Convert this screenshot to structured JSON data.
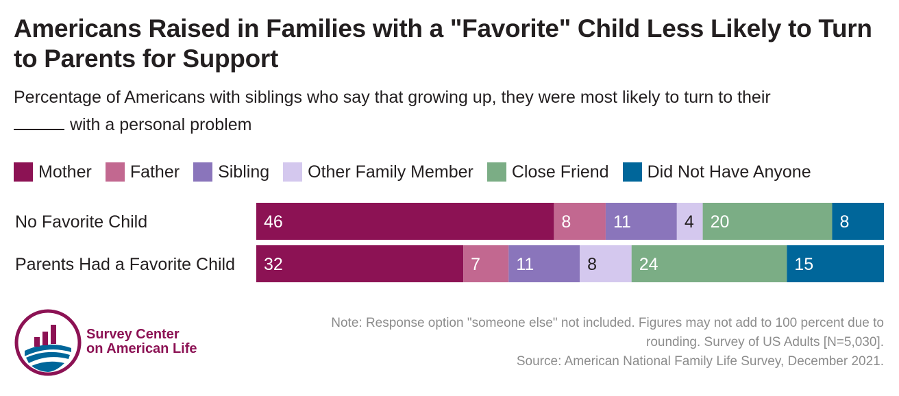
{
  "header": {
    "title": "Americans Raised in Families with a \"Favorite\" Child Less Likely to Turn to Parents for Support",
    "subtitle": "Percentage of Americans with siblings who say that growing up, they were most likely to turn to their",
    "subtitle_after_blank": "with a personal problem"
  },
  "chart_data": {
    "type": "bar",
    "orientation": "horizontal",
    "stacked": true,
    "categories": [
      "No Favorite Child",
      "Parents Had a Favorite Child"
    ],
    "series": [
      {
        "name": "Mother",
        "color": "#8c1254",
        "values": [
          46,
          32
        ]
      },
      {
        "name": "Father",
        "color": "#c26890",
        "values": [
          8,
          7
        ]
      },
      {
        "name": "Sibling",
        "color": "#8a75bb",
        "values": [
          11,
          11
        ]
      },
      {
        "name": "Other Family Member",
        "color": "#d4c8ee",
        "values": [
          4,
          8
        ]
      },
      {
        "name": "Close Friend",
        "color": "#7bad85",
        "values": [
          20,
          24
        ]
      },
      {
        "name": "Did Not Have Anyone",
        "color": "#00669a",
        "values": [
          8,
          15
        ]
      }
    ],
    "legend_position": "top-left",
    "grid": false
  },
  "footer": {
    "note_line1": "Note: Response option \"someone else\" not included. Figures may not add to 100 percent due to",
    "note_line2": "rounding. Survey of US Adults [N=5,030].",
    "source": "Source: American National Family Life Survey, December 2021."
  },
  "logo": {
    "line1": "Survey Center",
    "line2": "on American Life",
    "colors": {
      "primary": "#8c1254",
      "secondary": "#00669a"
    }
  }
}
